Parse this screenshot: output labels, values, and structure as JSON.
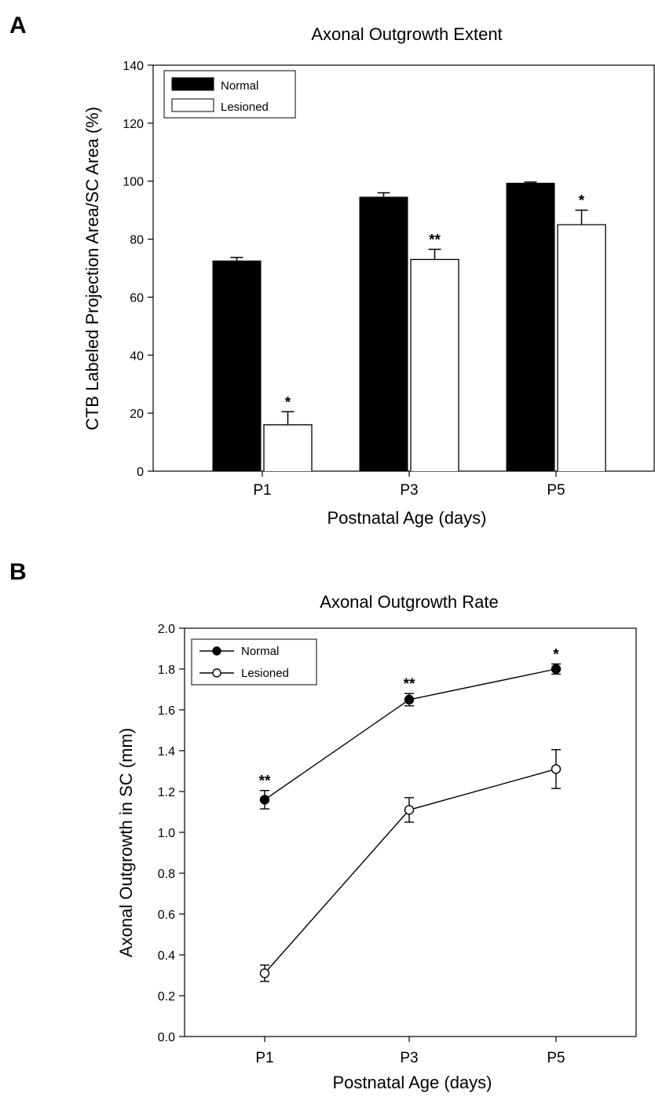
{
  "chart_data": [
    {
      "panel": "A",
      "type": "bar",
      "title": "Axonal Outgrowth Extent",
      "xlabel": "Postnatal Age (days)",
      "ylabel": "CTB Labeled Projection Area/SC Area (%)",
      "ylim": [
        0,
        140
      ],
      "yticks": [
        0,
        20,
        40,
        60,
        80,
        100,
        120,
        140
      ],
      "categories": [
        "P1",
        "P3",
        "P5"
      ],
      "legend_position": "top-left",
      "grid": false,
      "series": [
        {
          "name": "Normal",
          "color": "#000000",
          "values": [
            72.5,
            94.5,
            99.3
          ],
          "errors": [
            1.2,
            1.5,
            0.4
          ],
          "annotations": [
            "",
            "",
            ""
          ]
        },
        {
          "name": "Lesioned",
          "color": "#ffffff",
          "values": [
            16,
            73,
            85
          ],
          "errors": [
            4.5,
            3.5,
            5
          ],
          "annotations": [
            "*",
            "**",
            "*"
          ]
        }
      ]
    },
    {
      "panel": "B",
      "type": "line",
      "title": "Axonal Outgrowth Rate",
      "xlabel": "Postnatal Age (days)",
      "ylabel": "Axonal Outgrowth in SC (mm)",
      "ylim": [
        0.0,
        2.0
      ],
      "yticks": [
        "0.0",
        "0.2",
        "0.4",
        "0.6",
        "0.8",
        "1.0",
        "1.2",
        "1.4",
        "1.6",
        "1.8",
        "2.0"
      ],
      "categories": [
        "P1",
        "P3",
        "P5"
      ],
      "legend_position": "top-left",
      "grid": false,
      "series": [
        {
          "name": "Normal",
          "marker": "filled-circle",
          "values": [
            1.16,
            1.65,
            1.8
          ],
          "errors": [
            0.045,
            0.03,
            0.025
          ],
          "annotations": [
            "**",
            "**",
            "*"
          ]
        },
        {
          "name": "Lesioned",
          "marker": "open-circle",
          "values": [
            0.31,
            1.11,
            1.31
          ],
          "errors": [
            0.04,
            0.06,
            0.095
          ],
          "annotations": [
            "",
            "",
            ""
          ]
        }
      ]
    }
  ]
}
